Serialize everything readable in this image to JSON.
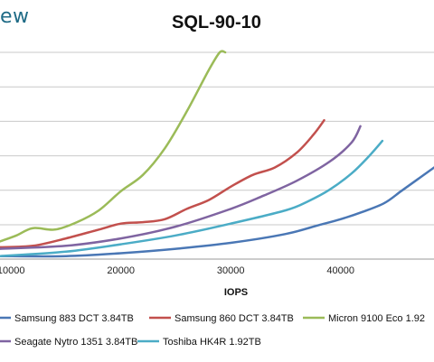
{
  "header": {
    "logo_text": "ew",
    "title": "SQL-90-10"
  },
  "chart_data": {
    "type": "line",
    "title": "SQL-90-10",
    "xlabel": "IOPS",
    "ylabel": "",
    "xlim": [
      9000,
      48500
    ],
    "ylim": [
      0,
      14
    ],
    "x_ticks": [
      10000,
      20000,
      30000,
      40000
    ],
    "x_tick_labels": [
      "10000",
      "20000",
      "30000",
      "40000"
    ],
    "grid": "horizontal",
    "legend_position": "bottom",
    "series": [
      {
        "name": "Samsung 883 DCT 3.84TB",
        "color": "#4a77b5",
        "x": [
          9000,
          15000,
          20000,
          25000,
          30000,
          35000,
          38000,
          40000,
          42000,
          44000,
          45500,
          47000,
          48500
        ],
        "y": [
          0.2,
          0.2,
          0.4,
          0.7,
          1.1,
          1.7,
          2.3,
          2.7,
          3.2,
          3.8,
          4.6,
          5.4,
          6.2
        ]
      },
      {
        "name": "Samsung 860 DCT 3.84TB",
        "color": "#c2504d",
        "x": [
          9000,
          12000,
          15000,
          18000,
          20000,
          22000,
          24000,
          26000,
          28000,
          30000,
          32000,
          34000,
          36000,
          37500,
          38500
        ],
        "y": [
          0.8,
          0.9,
          1.4,
          2.0,
          2.4,
          2.5,
          2.7,
          3.4,
          4.0,
          4.9,
          5.7,
          6.2,
          7.2,
          8.4,
          9.4
        ]
      },
      {
        "name": "Micron 9100 Eco 1.92",
        "color": "#9bbb58",
        "x": [
          9000,
          10500,
          12000,
          14000,
          16000,
          18000,
          20000,
          22000,
          24000,
          26000,
          28000,
          29000,
          29500
        ],
        "y": [
          1.2,
          1.6,
          2.1,
          2.0,
          2.5,
          3.3,
          4.6,
          5.7,
          7.5,
          10.0,
          12.8,
          14.0,
          14.0
        ]
      },
      {
        "name": "Seagate Nytro 1351 3.84TB",
        "color": "#7f64a1",
        "x": [
          9000,
          15000,
          20000,
          25000,
          30000,
          33000,
          36000,
          39000,
          41000,
          41800
        ],
        "y": [
          0.7,
          0.9,
          1.4,
          2.2,
          3.4,
          4.3,
          5.3,
          6.6,
          7.9,
          9.0
        ]
      },
      {
        "name": "Toshiba HK4R 1.92TB",
        "color": "#4bacc6",
        "x": [
          9000,
          15000,
          20000,
          25000,
          30000,
          35000,
          37000,
          39000,
          41000,
          42500,
          43800
        ],
        "y": [
          0.2,
          0.5,
          1.0,
          1.6,
          2.4,
          3.3,
          3.9,
          4.7,
          5.8,
          6.9,
          8.0
        ]
      }
    ]
  }
}
